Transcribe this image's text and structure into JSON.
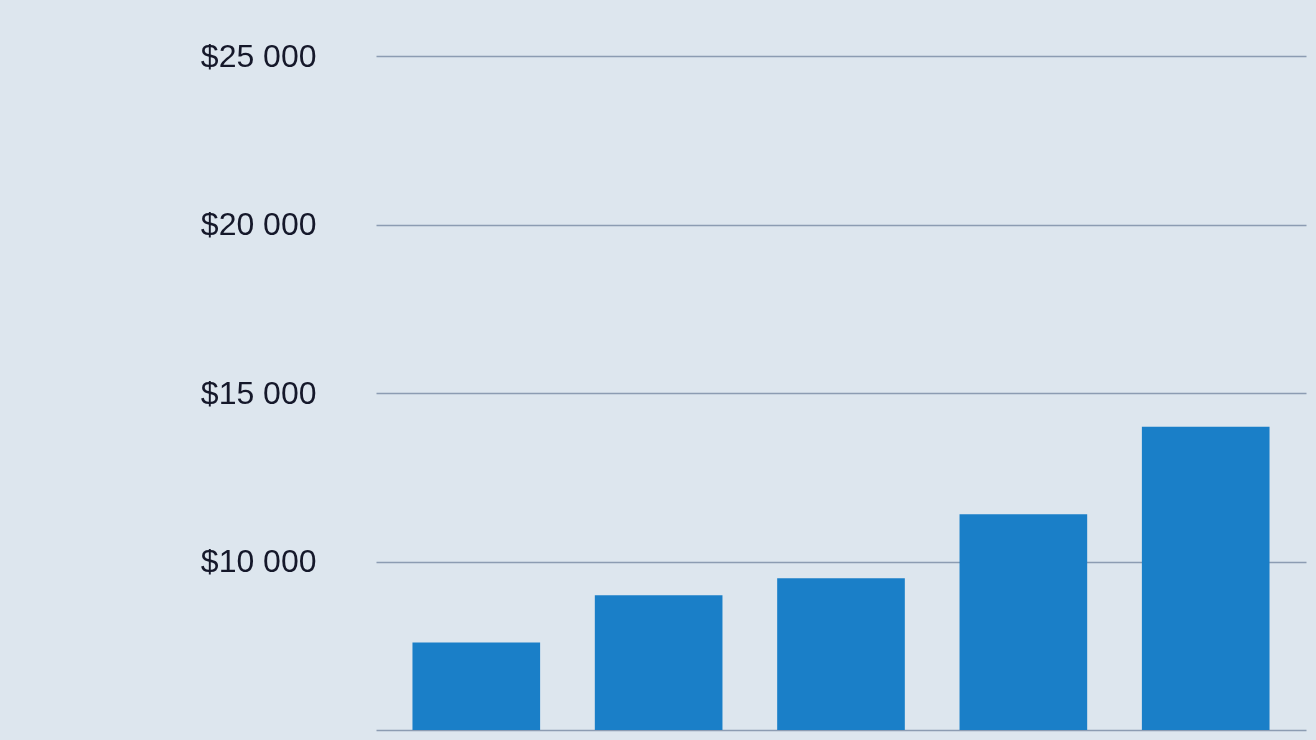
{
  "chart_data": {
    "type": "bar",
    "categories": [
      null,
      null,
      null,
      null,
      null
    ],
    "values": [
      7600,
      9000,
      9500,
      11400,
      14000
    ],
    "color": "#1a7fc8",
    "ylim": [
      5000,
      25000
    ],
    "yticks": [
      {
        "value": 5000,
        "label": null
      },
      {
        "value": 10000,
        "label": "$10 000"
      },
      {
        "value": 15000,
        "label": "$15 000"
      },
      {
        "value": 20000,
        "label": "$20 000"
      },
      {
        "value": 25000,
        "label": "$25 000"
      }
    ],
    "grid": "y",
    "tick_labels": "y"
  }
}
